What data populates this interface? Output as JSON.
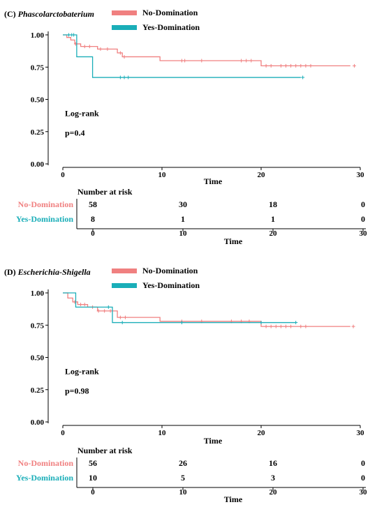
{
  "colors": {
    "no": "#f08080",
    "yes": "#1aaeb8"
  },
  "chart_data": [
    {
      "type": "line",
      "title_prefix": "(C)",
      "title_name": "Phascolarctobaterium",
      "xlabel": "Time",
      "ylabel": "",
      "xlim": [
        0,
        30
      ],
      "ylim": [
        0,
        1
      ],
      "x_ticks": [
        "0",
        "10",
        "20",
        "30"
      ],
      "y_ticks": [
        "0.00",
        "0.25",
        "0.50",
        "0.75",
        "1.00"
      ],
      "legend_position": "top-center",
      "annotation_1": "Log-rank",
      "annotation_2": "p=0.4",
      "series": [
        {
          "name": "No-Domination",
          "x": [
            0,
            0.4,
            0.8,
            1.2,
            1.8,
            3.5,
            5.5,
            6.0,
            9.8,
            20.0,
            29.0
          ],
          "y": [
            1.0,
            0.98,
            0.96,
            0.93,
            0.91,
            0.89,
            0.86,
            0.83,
            0.8,
            0.76,
            0.76
          ],
          "censor_x": [
            1.3,
            2.2,
            2.7,
            3.8,
            4.5,
            5.8,
            6.2,
            12.0,
            12.3,
            14.0,
            18.0,
            18.5,
            19.0,
            20.5,
            21.0,
            22.0,
            22.5,
            23.0,
            23.5,
            24.0,
            24.5,
            25.0,
            29.4
          ],
          "censor_y": [
            0.93,
            0.91,
            0.91,
            0.89,
            0.89,
            0.86,
            0.83,
            0.8,
            0.8,
            0.8,
            0.8,
            0.8,
            0.8,
            0.76,
            0.76,
            0.76,
            0.76,
            0.76,
            0.76,
            0.76,
            0.76,
            0.76,
            0.76
          ]
        },
        {
          "name": "Yes-Domination",
          "x": [
            0,
            1.4,
            3.0,
            24.0
          ],
          "y": [
            1.0,
            0.83,
            0.67,
            0.67
          ],
          "censor_x": [
            0.6,
            0.9,
            1.1,
            5.8,
            6.2,
            6.6,
            24.2
          ],
          "censor_y": [
            1.0,
            1.0,
            1.0,
            0.67,
            0.67,
            0.67,
            0.67
          ]
        }
      ],
      "risk_table": {
        "title": "Number at risk",
        "times": [
          "0",
          "10",
          "20",
          "30"
        ],
        "xlabel": "Time",
        "rows": [
          {
            "label": "No-Domination",
            "values": [
              "58",
              "30",
              "18",
              "0"
            ]
          },
          {
            "label": "Yes-Domination",
            "values": [
              "8",
              "1",
              "1",
              "0"
            ]
          }
        ]
      }
    },
    {
      "type": "line",
      "title_prefix": "(D)",
      "title_name": "Escherichia-Shigella",
      "xlabel": "Time",
      "ylabel": "",
      "xlim": [
        0,
        30
      ],
      "ylim": [
        0,
        1
      ],
      "x_ticks": [
        "0",
        "10",
        "20",
        "30"
      ],
      "y_ticks": [
        "0.00",
        "0.25",
        "0.50",
        "0.75",
        "1.00"
      ],
      "legend_position": "top-center",
      "annotation_1": "Log-rank",
      "annotation_2": "p=0.98",
      "series": [
        {
          "name": "No-Domination",
          "x": [
            0,
            0.5,
            1.0,
            1.5,
            2.5,
            3.5,
            5.5,
            9.8,
            20.0,
            29.0
          ],
          "y": [
            1.0,
            0.96,
            0.93,
            0.91,
            0.89,
            0.86,
            0.81,
            0.78,
            0.74,
            0.74
          ],
          "censor_x": [
            1.2,
            1.8,
            2.2,
            3.0,
            3.6,
            4.2,
            4.8,
            5.8,
            6.3,
            12.0,
            14.0,
            17.0,
            18.0,
            18.8,
            20.5,
            21.0,
            21.5,
            22.0,
            22.5,
            23.0,
            24.0,
            24.5,
            29.3
          ],
          "censor_y": [
            0.93,
            0.91,
            0.91,
            0.89,
            0.86,
            0.86,
            0.86,
            0.81,
            0.81,
            0.78,
            0.78,
            0.78,
            0.78,
            0.78,
            0.74,
            0.74,
            0.74,
            0.74,
            0.74,
            0.74,
            0.74,
            0.74,
            0.74
          ]
        },
        {
          "name": "Yes-Domination",
          "x": [
            0,
            1.3,
            5.0,
            23.5
          ],
          "y": [
            1.0,
            0.89,
            0.77,
            0.77
          ],
          "censor_x": [
            4.6,
            6.0,
            12.0,
            20.0,
            23.5
          ],
          "censor_y": [
            0.89,
            0.77,
            0.77,
            0.77,
            0.77
          ]
        }
      ],
      "risk_table": {
        "title": "Number at risk",
        "times": [
          "0",
          "10",
          "20",
          "30"
        ],
        "xlabel": "Time",
        "rows": [
          {
            "label": "No-Domination",
            "values": [
              "56",
              "26",
              "16",
              "0"
            ]
          },
          {
            "label": "Yes-Domination",
            "values": [
              "10",
              "5",
              "3",
              "0"
            ]
          }
        ]
      }
    }
  ]
}
